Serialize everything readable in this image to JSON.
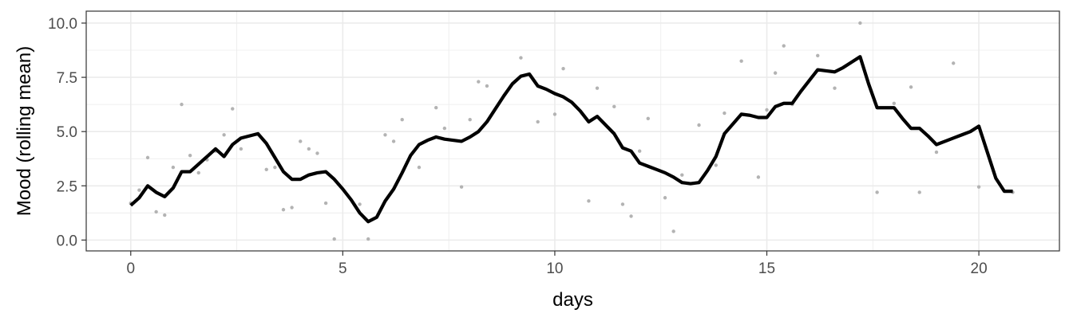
{
  "chart_data": {
    "type": "line",
    "title": "",
    "xlabel": "days",
    "ylabel": "Mood (rolling mean)",
    "xlim": [
      -1.05,
      21.9
    ],
    "ylim": [
      -0.5,
      10.55
    ],
    "x_ticks": [
      0,
      5,
      10,
      15,
      20
    ],
    "x_tick_labels": [
      "0",
      "5",
      "10",
      "15",
      "20"
    ],
    "y_ticks": [
      0,
      2.5,
      5,
      7.5,
      10
    ],
    "y_tick_labels": [
      "0.0",
      "2.5",
      "5.0",
      "7.5",
      "10.0"
    ],
    "grid": true,
    "legend": "none",
    "colors": {
      "line": "#000000",
      "points": "#b3b3b3",
      "grid": "#ebebeb",
      "panel_border": "#333333"
    },
    "series": [
      {
        "type": "line",
        "x": [
          0,
          0.2,
          0.4,
          0.6,
          0.8,
          1.0,
          1.2,
          1.4,
          1.6,
          1.8,
          2.0,
          2.2,
          2.4,
          2.6,
          2.8,
          3.0,
          3.2,
          3.4,
          3.6,
          3.8,
          4.0,
          4.2,
          4.4,
          4.6,
          4.8,
          5.0,
          5.2,
          5.4,
          5.6,
          5.8,
          6.0,
          6.2,
          6.4,
          6.6,
          6.8,
          7.0,
          7.2,
          7.4,
          7.6,
          7.8,
          8.0,
          8.2,
          8.4,
          8.6,
          8.8,
          9.0,
          9.2,
          9.4,
          9.6,
          9.8,
          10.0,
          10.2,
          10.4,
          10.6,
          10.8,
          11.0,
          11.2,
          11.4,
          11.6,
          11.8,
          12.0,
          12.2,
          12.4,
          12.6,
          12.8,
          13.0,
          13.2,
          13.4,
          13.6,
          13.8,
          14.0,
          14.2,
          14.4,
          14.6,
          14.8,
          15.0,
          15.2,
          15.4,
          15.6,
          15.8,
          16.0,
          16.2,
          16.4,
          16.6,
          16.8,
          17.0,
          17.2,
          17.4,
          17.6,
          17.8,
          18.0,
          18.2,
          18.4,
          18.6,
          18.8,
          19.0,
          19.2,
          19.4,
          19.6,
          19.8,
          20.0,
          20.2,
          20.4,
          20.6,
          20.8
        ],
        "y": [
          1.6,
          1.95,
          2.5,
          2.2,
          2.0,
          2.4,
          3.15,
          3.15,
          3.5,
          3.85,
          4.2,
          3.85,
          4.4,
          4.7,
          4.8,
          4.9,
          4.45,
          3.8,
          3.15,
          2.8,
          2.8,
          3.0,
          3.1,
          3.15,
          2.8,
          2.35,
          1.85,
          1.25,
          0.85,
          1.05,
          1.8,
          2.35,
          3.1,
          3.9,
          4.4,
          4.6,
          4.75,
          4.65,
          4.6,
          4.55,
          4.75,
          5.0,
          5.45,
          6.05,
          6.65,
          7.2,
          7.55,
          7.65,
          7.1,
          6.95,
          6.75,
          6.6,
          6.35,
          5.95,
          5.45,
          5.7,
          5.3,
          4.9,
          4.25,
          4.1,
          3.55,
          3.4,
          3.25,
          3.1,
          2.9,
          2.65,
          2.6,
          2.65,
          3.2,
          3.85,
          4.9,
          5.35,
          5.8,
          5.75,
          5.65,
          5.65,
          6.15,
          6.3,
          6.3,
          6.85,
          7.35,
          7.85,
          7.8,
          7.75,
          7.95,
          8.2,
          8.45,
          7.2,
          6.1,
          6.1,
          6.1,
          5.6,
          5.15,
          5.15,
          4.8,
          4.4,
          4.55,
          4.7,
          4.85,
          5.0,
          5.25,
          4.05,
          2.85,
          2.25,
          2.25
        ]
      },
      {
        "type": "scatter",
        "x": [
          0,
          0.2,
          0.4,
          0.6,
          0.8,
          1.0,
          1.2,
          1.4,
          1.6,
          1.8,
          2.0,
          2.2,
          2.4,
          2.6,
          3.2,
          3.4,
          3.6,
          3.8,
          4.0,
          4.2,
          4.4,
          4.6,
          4.8,
          5.4,
          5.6,
          6.0,
          6.2,
          6.4,
          6.8,
          7.2,
          7.4,
          7.8,
          8.0,
          8.2,
          8.4,
          9.2,
          9.6,
          10.0,
          10.2,
          10.8,
          11.0,
          11.4,
          11.6,
          11.8,
          12.0,
          12.2,
          12.6,
          12.8,
          13.0,
          13.4,
          13.8,
          14.0,
          14.4,
          14.8,
          15.0,
          15.2,
          15.4,
          15.6,
          16.2,
          16.6,
          17.2,
          17.6,
          18.0,
          18.4,
          18.6,
          19.0,
          19.4,
          20.0,
          20.8
        ],
        "y": [
          1.7,
          2.3,
          3.8,
          1.3,
          1.15,
          3.35,
          6.25,
          3.9,
          3.1,
          3.7,
          4.1,
          4.85,
          6.05,
          4.2,
          3.25,
          3.35,
          1.4,
          1.5,
          4.55,
          4.2,
          4.0,
          1.7,
          0.05,
          1.65,
          0.05,
          4.85,
          4.55,
          5.55,
          3.35,
          6.1,
          5.15,
          2.45,
          5.55,
          7.3,
          7.1,
          8.4,
          5.45,
          5.8,
          7.9,
          1.8,
          7.0,
          6.15,
          1.65,
          1.1,
          4.1,
          5.6,
          1.95,
          0.4,
          3.0,
          5.3,
          3.45,
          5.85,
          8.25,
          2.9,
          6.0,
          7.7,
          8.95,
          6.25,
          8.5,
          7.0,
          10.0,
          2.2,
          6.3,
          7.05,
          2.2,
          4.05,
          8.15,
          2.45,
          2.2
        ]
      }
    ]
  }
}
